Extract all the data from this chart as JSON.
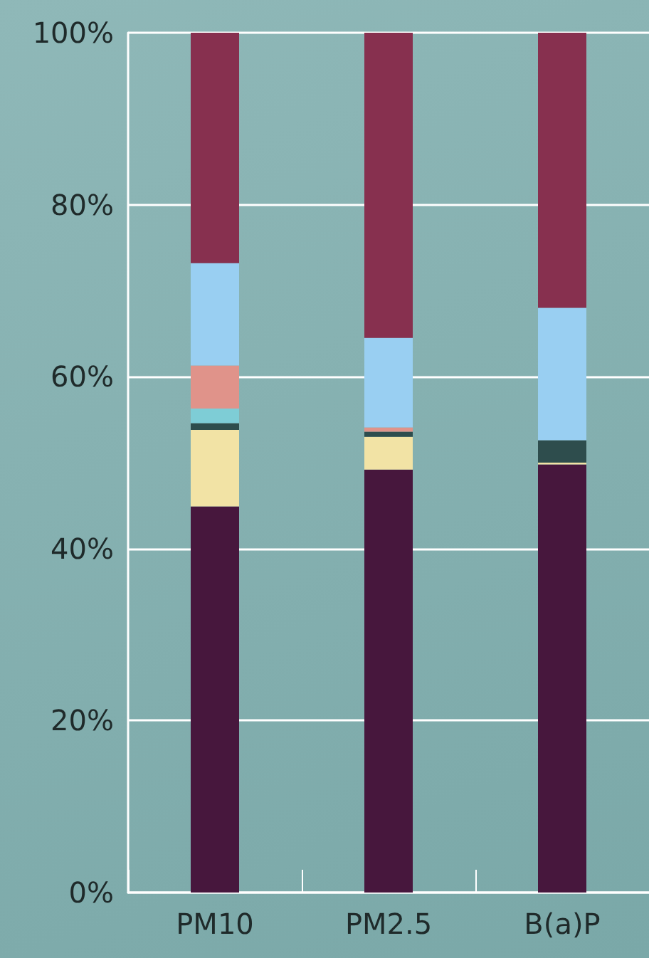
{
  "chart_data": {
    "type": "bar",
    "stacked": true,
    "categories": [
      "PM10",
      "PM2.5",
      "B(a)P"
    ],
    "series": [
      {
        "color": "#47173d",
        "values": [
          44.9,
          49.2,
          49.8
        ]
      },
      {
        "color": "#f2e3a5",
        "values": [
          8.9,
          3.8,
          0.2
        ]
      },
      {
        "color": "#2e4d4d",
        "values": [
          0.8,
          0.6,
          2.6
        ]
      },
      {
        "color": "#7ecdd6",
        "values": [
          1.7,
          0,
          0
        ]
      },
      {
        "color": "#e0938a",
        "values": [
          5.0,
          0.5,
          0
        ]
      },
      {
        "color": "#99cff2",
        "values": [
          11.9,
          10.4,
          15.4
        ]
      },
      {
        "color": "#87304f",
        "values": [
          26.8,
          35.5,
          32.0
        ]
      }
    ],
    "ylim": [
      0,
      100
    ],
    "yticks": [
      {
        "value": 0,
        "label": "0%"
      },
      {
        "value": 20,
        "label": "20%"
      },
      {
        "value": 40,
        "label": "40%"
      },
      {
        "value": 60,
        "label": "60%"
      },
      {
        "value": 80,
        "label": "80%"
      },
      {
        "value": 100,
        "label": "100%"
      }
    ],
    "grid": "y"
  }
}
